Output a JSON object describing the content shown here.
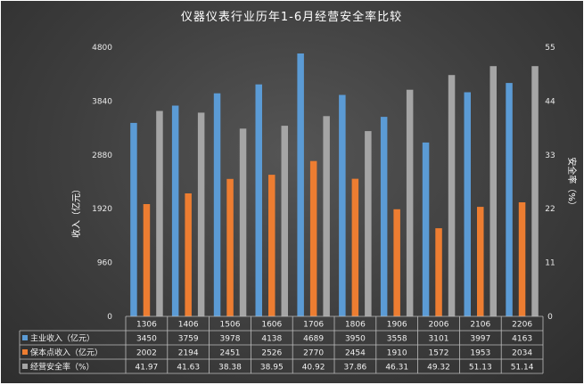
{
  "chart_data": {
    "type": "bar",
    "title": "仪器仪表行业历年1-6月经营安全率比较",
    "categories": [
      "1306",
      "1406",
      "1506",
      "1606",
      "1706",
      "1806",
      "1906",
      "2006",
      "2106",
      "2206"
    ],
    "series": [
      {
        "name": "主业收入（亿元）",
        "axis": "left",
        "color": "#5b9bd5",
        "values": [
          3450,
          3759,
          3978,
          4138,
          4689,
          3950,
          3558,
          3101,
          3997,
          4163
        ],
        "labels": [
          "3450",
          "3759",
          "3978",
          "4138",
          "4689",
          "3950",
          "3558",
          "3101",
          "3997",
          "4163"
        ]
      },
      {
        "name": "保本点收入（亿元）",
        "axis": "left",
        "color": "#ed7d31",
        "values": [
          2002,
          2194,
          2451,
          2526,
          2770,
          2454,
          1910,
          1572,
          1953,
          2034
        ],
        "labels": [
          "2002",
          "2194",
          "2451",
          "2526",
          "2770",
          "2454",
          "1910",
          "1572",
          "1953",
          "2034"
        ]
      },
      {
        "name": "经营安全率（%）",
        "axis": "right",
        "color": "#a5a5a5",
        "values": [
          41.97,
          41.63,
          38.38,
          38.95,
          40.92,
          37.86,
          46.31,
          49.32,
          51.13,
          51.14
        ],
        "labels": [
          "41.97",
          "41.63",
          "38.38",
          "38.95",
          "40.92",
          "37.86",
          "46.31",
          "49.32",
          "51.13",
          "51.14"
        ]
      }
    ],
    "y_left": {
      "label": "收入（亿元）",
      "ylim": [
        0,
        4800
      ],
      "ticks": [
        "0",
        "960",
        "1920",
        "2880",
        "3840",
        "4800"
      ]
    },
    "y_right": {
      "label": "安全率（%）",
      "ylim": [
        0,
        55
      ],
      "ticks": [
        "0",
        "11",
        "22",
        "33",
        "44",
        "55"
      ]
    },
    "grid": false,
    "legend": "data-table-below"
  }
}
